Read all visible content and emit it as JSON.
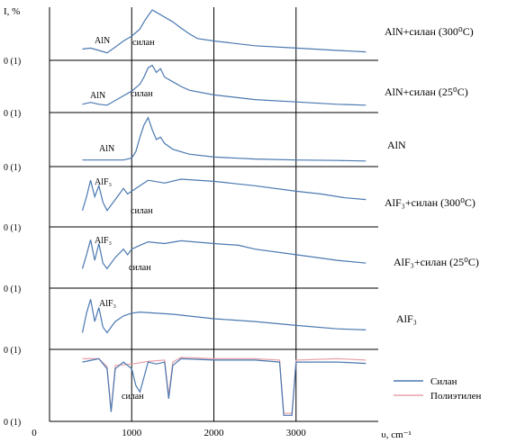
{
  "chart_data": {
    "type": "line",
    "ylabel": "I, %",
    "xlabel": "υ, cm⁻¹",
    "x_ticks": [
      {
        "value": 0,
        "label": "0"
      },
      {
        "value": 1000,
        "label": "1000"
      },
      {
        "value": 2000,
        "label": "2000"
      },
      {
        "value": 3000,
        "label": "3000"
      }
    ],
    "xlim": [
      0,
      4000
    ],
    "grid_x": [
      1000,
      2000,
      3000
    ],
    "panels": [
      {
        "label": "AlN+силан (300⁰C)",
        "zero_label": "0 (1)",
        "annotations": [
          "AlN",
          "силан"
        ],
        "color": "#4a78b0",
        "points": [
          [
            400,
            0.18
          ],
          [
            500,
            0.2
          ],
          [
            600,
            0.15
          ],
          [
            700,
            0.1
          ],
          [
            800,
            0.22
          ],
          [
            900,
            0.35
          ],
          [
            1000,
            0.45
          ],
          [
            1100,
            0.6
          ],
          [
            1150,
            0.75
          ],
          [
            1200,
            0.88
          ],
          [
            1250,
            1.0
          ],
          [
            1300,
            0.95
          ],
          [
            1400,
            0.85
          ],
          [
            1500,
            0.75
          ],
          [
            1600,
            0.62
          ],
          [
            1700,
            0.5
          ],
          [
            1800,
            0.4
          ],
          [
            2000,
            0.35
          ],
          [
            2500,
            0.25
          ],
          [
            3000,
            0.2
          ],
          [
            3500,
            0.15
          ],
          [
            3850,
            0.12
          ]
        ]
      },
      {
        "label": "AlN+силан (25⁰C)",
        "zero_label": "0 (1)",
        "annotations": [
          "AlN",
          "силан"
        ],
        "color": "#4a78b0",
        "points": [
          [
            400,
            0.12
          ],
          [
            500,
            0.16
          ],
          [
            600,
            0.12
          ],
          [
            700,
            0.1
          ],
          [
            800,
            0.2
          ],
          [
            900,
            0.3
          ],
          [
            1000,
            0.4
          ],
          [
            1100,
            0.55
          ],
          [
            1150,
            0.7
          ],
          [
            1200,
            0.9
          ],
          [
            1250,
            0.95
          ],
          [
            1300,
            0.8
          ],
          [
            1350,
            0.88
          ],
          [
            1400,
            0.7
          ],
          [
            1500,
            0.6
          ],
          [
            1600,
            0.5
          ],
          [
            1700,
            0.42
          ],
          [
            2000,
            0.32
          ],
          [
            2500,
            0.22
          ],
          [
            3000,
            0.17
          ],
          [
            3500,
            0.12
          ],
          [
            3850,
            0.1
          ]
        ]
      },
      {
        "label": "AlN",
        "zero_label": "0 (1)",
        "annotations": [
          "AlN"
        ],
        "color": "#4a78b0",
        "points": [
          [
            400,
            0.08
          ],
          [
            600,
            0.08
          ],
          [
            800,
            0.08
          ],
          [
            900,
            0.08
          ],
          [
            1000,
            0.12
          ],
          [
            1050,
            0.25
          ],
          [
            1100,
            0.55
          ],
          [
            1150,
            0.8
          ],
          [
            1200,
            0.95
          ],
          [
            1250,
            0.7
          ],
          [
            1300,
            0.5
          ],
          [
            1350,
            0.55
          ],
          [
            1400,
            0.42
          ],
          [
            1500,
            0.3
          ],
          [
            1700,
            0.2
          ],
          [
            2000,
            0.14
          ],
          [
            2500,
            0.1
          ],
          [
            3000,
            0.08
          ],
          [
            3500,
            0.07
          ],
          [
            3850,
            0.06
          ]
        ]
      },
      {
        "label": "AlF₃+силан (300⁰C)",
        "zero_label": "0 (1)",
        "annotations": [
          "AlF₃",
          "силан"
        ],
        "color": "#4a78b0",
        "points": [
          [
            400,
            0.25
          ],
          [
            450,
            0.5
          ],
          [
            500,
            0.8
          ],
          [
            550,
            0.5
          ],
          [
            600,
            0.7
          ],
          [
            650,
            0.4
          ],
          [
            700,
            0.25
          ],
          [
            800,
            0.45
          ],
          [
            900,
            0.65
          ],
          [
            950,
            0.55
          ],
          [
            1000,
            0.6
          ],
          [
            1100,
            0.7
          ],
          [
            1200,
            0.8
          ],
          [
            1400,
            0.75
          ],
          [
            1600,
            0.82
          ],
          [
            2000,
            0.78
          ],
          [
            2500,
            0.7
          ],
          [
            3000,
            0.6
          ],
          [
            3300,
            0.55
          ],
          [
            3600,
            0.48
          ],
          [
            3850,
            0.45
          ]
        ]
      },
      {
        "label": "AlF₃+силан (25⁰C)",
        "zero_label": "0 (1)",
        "annotations": [
          "AlF₃",
          "силан"
        ],
        "color": "#4a78b0",
        "points": [
          [
            400,
            0.3
          ],
          [
            450,
            0.55
          ],
          [
            500,
            0.82
          ],
          [
            550,
            0.45
          ],
          [
            600,
            0.75
          ],
          [
            650,
            0.4
          ],
          [
            700,
            0.3
          ],
          [
            800,
            0.5
          ],
          [
            900,
            0.65
          ],
          [
            950,
            0.55
          ],
          [
            1000,
            0.65
          ],
          [
            1100,
            0.72
          ],
          [
            1200,
            0.78
          ],
          [
            1400,
            0.75
          ],
          [
            1600,
            0.8
          ],
          [
            2000,
            0.75
          ],
          [
            2300,
            0.72
          ],
          [
            2500,
            0.65
          ],
          [
            3000,
            0.55
          ],
          [
            3500,
            0.45
          ],
          [
            3850,
            0.4
          ]
        ]
      },
      {
        "label": "AlF₃",
        "zero_label": "0 (1)",
        "annotations": [
          "AlF₃"
        ],
        "color": "#4a78b0",
        "points": [
          [
            400,
            0.25
          ],
          [
            450,
            0.6
          ],
          [
            500,
            0.85
          ],
          [
            550,
            0.45
          ],
          [
            600,
            0.7
          ],
          [
            650,
            0.35
          ],
          [
            700,
            0.25
          ],
          [
            800,
            0.45
          ],
          [
            900,
            0.55
          ],
          [
            1000,
            0.6
          ],
          [
            1100,
            0.62
          ],
          [
            1500,
            0.58
          ],
          [
            2000,
            0.5
          ],
          [
            2500,
            0.45
          ],
          [
            3000,
            0.38
          ],
          [
            3500,
            0.32
          ],
          [
            3850,
            0.3
          ]
        ]
      },
      {
        "label": "",
        "zero_label": "0 (1)",
        "annotations": [
          "силан"
        ],
        "color": "#4a78b0",
        "legend": [
          {
            "name": "Силан",
            "color": "#4a78b0"
          },
          {
            "name": "Полиэтилен",
            "color": "#e8a0a8"
          }
        ],
        "points": [
          [
            400,
            0.85
          ],
          [
            600,
            0.9
          ],
          [
            700,
            0.75
          ],
          [
            750,
            0.1
          ],
          [
            800,
            0.75
          ],
          [
            900,
            0.85
          ],
          [
            1000,
            0.75
          ],
          [
            1050,
            0.5
          ],
          [
            1100,
            0.4
          ],
          [
            1200,
            0.85
          ],
          [
            1300,
            0.82
          ],
          [
            1400,
            0.85
          ],
          [
            1450,
            0.3
          ],
          [
            1500,
            0.8
          ],
          [
            1600,
            0.9
          ],
          [
            2000,
            0.88
          ],
          [
            2500,
            0.88
          ],
          [
            2800,
            0.85
          ],
          [
            2850,
            0.05
          ],
          [
            2950,
            0.05
          ],
          [
            3000,
            0.85
          ],
          [
            3500,
            0.85
          ],
          [
            3850,
            0.83
          ]
        ],
        "series2": [
          [
            400,
            0.9
          ],
          [
            600,
            0.9
          ],
          [
            700,
            0.78
          ],
          [
            750,
            0.12
          ],
          [
            800,
            0.8
          ],
          [
            1000,
            0.82
          ],
          [
            1200,
            0.86
          ],
          [
            1400,
            0.88
          ],
          [
            1450,
            0.35
          ],
          [
            1500,
            0.85
          ],
          [
            1600,
            0.92
          ],
          [
            2000,
            0.9
          ],
          [
            2500,
            0.9
          ],
          [
            2800,
            0.88
          ],
          [
            2850,
            0.08
          ],
          [
            2950,
            0.08
          ],
          [
            3000,
            0.88
          ],
          [
            3500,
            0.9
          ],
          [
            3850,
            0.88
          ]
        ]
      }
    ]
  }
}
